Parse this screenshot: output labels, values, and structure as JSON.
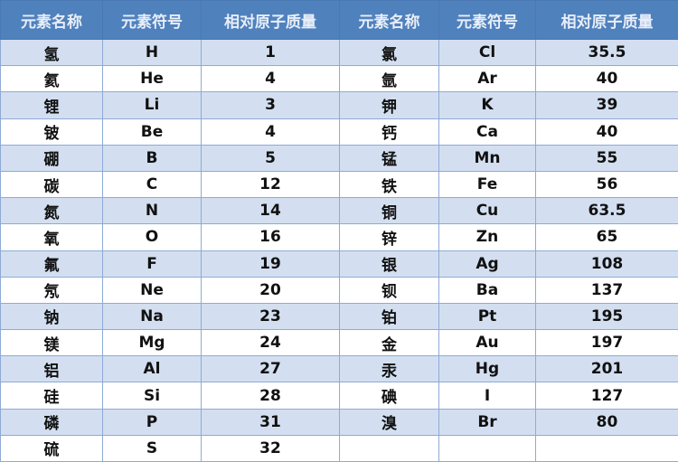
{
  "headers": [
    "元素名称",
    "元素符号",
    "相对原子质量",
    "元素名称",
    "元素符号",
    "相对原子质量"
  ],
  "colors": {
    "header_bg": "#4f81bd",
    "row_alt": "#d3dff0",
    "row": "#ffffff"
  },
  "rows": [
    [
      "氢",
      "H",
      "1",
      "氯",
      "Cl",
      "35.5"
    ],
    [
      "氦",
      "He",
      "4",
      "氩",
      "Ar",
      "40"
    ],
    [
      "锂",
      "Li",
      "3",
      "钾",
      "K",
      "39"
    ],
    [
      "铍",
      "Be",
      "4",
      "钙",
      "Ca",
      "40"
    ],
    [
      "硼",
      "B",
      "5",
      "锰",
      "Mn",
      "55"
    ],
    [
      "碳",
      "C",
      "12",
      "铁",
      "Fe",
      "56"
    ],
    [
      "氮",
      "N",
      "14",
      "铜",
      "Cu",
      "63.5"
    ],
    [
      "氧",
      "O",
      "16",
      "锌",
      "Zn",
      "65"
    ],
    [
      "氟",
      "F",
      "19",
      "银",
      "Ag",
      "108"
    ],
    [
      "氖",
      "Ne",
      "20",
      "钡",
      "Ba",
      "137"
    ],
    [
      "钠",
      "Na",
      "23",
      "铂",
      "Pt",
      "195"
    ],
    [
      "镁",
      "Mg",
      "24",
      "金",
      "Au",
      "197"
    ],
    [
      "铝",
      "Al",
      "27",
      "汞",
      "Hg",
      "201"
    ],
    [
      "硅",
      "Si",
      "28",
      "碘",
      "I",
      "127"
    ],
    [
      "磷",
      "P",
      "31",
      "溴",
      "Br",
      "80"
    ],
    [
      "硫",
      "S",
      "32",
      "",
      "",
      ""
    ]
  ]
}
